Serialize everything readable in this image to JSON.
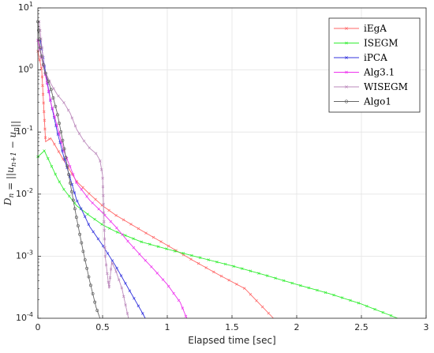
{
  "chart_data": {
    "type": "line",
    "xlabel": "Elapsed time [sec]",
    "ylabel": "D_n = ||u_{n+1} − u_n||",
    "xlim": [
      0,
      3
    ],
    "ylim": [
      0.0001,
      10
    ],
    "yscale": "log",
    "grid": true,
    "legend_position": "top-right",
    "x_ticks": [
      "0",
      "0.5",
      "1",
      "1.5",
      "2",
      "2.5",
      "3"
    ],
    "y_ticks": [
      {
        "base": "10",
        "exp": "1"
      },
      {
        "base": "10",
        "exp": "0"
      },
      {
        "base": "10",
        "exp": "-1"
      },
      {
        "base": "10",
        "exp": "-2"
      },
      {
        "base": "10",
        "exp": "-3"
      },
      {
        "base": "10",
        "exp": "-4"
      }
    ],
    "series": [
      {
        "name": "iEgA",
        "color": "#ff6666",
        "marker": "x",
        "points": [
          [
            0.0,
            2.0
          ],
          [
            0.03,
            1.0
          ],
          [
            0.06,
            0.07
          ],
          [
            0.1,
            0.08
          ],
          [
            0.2,
            0.035
          ],
          [
            0.3,
            0.016
          ],
          [
            0.4,
            0.01
          ],
          [
            0.5,
            0.0065
          ],
          [
            0.6,
            0.0046
          ],
          [
            0.8,
            0.0026
          ],
          [
            1.0,
            0.0015
          ],
          [
            1.2,
            0.00085
          ],
          [
            1.4,
            0.0005
          ],
          [
            1.6,
            0.0003
          ],
          [
            1.82,
            0.0001
          ]
        ]
      },
      {
        "name": "ISEGM",
        "color": "#33ee33",
        "marker": "x",
        "points": [
          [
            0.0,
            0.04
          ],
          [
            0.05,
            0.05
          ],
          [
            0.1,
            0.03
          ],
          [
            0.15,
            0.018
          ],
          [
            0.2,
            0.012
          ],
          [
            0.3,
            0.0065
          ],
          [
            0.4,
            0.0045
          ],
          [
            0.5,
            0.0032
          ],
          [
            0.6,
            0.0025
          ],
          [
            0.8,
            0.0017
          ],
          [
            1.0,
            0.0013
          ],
          [
            1.25,
            0.00095
          ],
          [
            1.5,
            0.0007
          ],
          [
            1.75,
            0.0005
          ],
          [
            2.0,
            0.00035
          ],
          [
            2.25,
            0.00025
          ],
          [
            2.5,
            0.00017
          ],
          [
            2.78,
            0.0001
          ]
        ]
      },
      {
        "name": "iPCA",
        "color": "#3333dd",
        "marker": "x",
        "points": [
          [
            0.02,
            3.0
          ],
          [
            0.05,
            1.2
          ],
          [
            0.1,
            0.3
          ],
          [
            0.15,
            0.1
          ],
          [
            0.2,
            0.04
          ],
          [
            0.25,
            0.018
          ],
          [
            0.3,
            0.008
          ],
          [
            0.35,
            0.005
          ],
          [
            0.4,
            0.003
          ],
          [
            0.5,
            0.0015
          ],
          [
            0.6,
            0.0007
          ],
          [
            0.7,
            0.0003
          ],
          [
            0.8,
            0.00013
          ],
          [
            0.83,
            0.0001
          ]
        ]
      },
      {
        "name": "Alg3.1",
        "color": "#ee33ee",
        "marker": "x",
        "points": [
          [
            0.0,
            3.0
          ],
          [
            0.05,
            1.0
          ],
          [
            0.1,
            0.3
          ],
          [
            0.2,
            0.05
          ],
          [
            0.3,
            0.015
          ],
          [
            0.4,
            0.008
          ],
          [
            0.5,
            0.005
          ],
          [
            0.6,
            0.003
          ],
          [
            0.7,
            0.0017
          ],
          [
            0.8,
            0.001
          ],
          [
            0.9,
            0.0006
          ],
          [
            1.0,
            0.00035
          ],
          [
            1.1,
            0.00018
          ],
          [
            1.15,
            0.0001
          ]
        ]
      },
      {
        "name": "WISEGM",
        "color": "#bb88bb",
        "marker": "x",
        "points": [
          [
            0.01,
            6.0
          ],
          [
            0.05,
            1.0
          ],
          [
            0.1,
            0.6
          ],
          [
            0.15,
            0.4
          ],
          [
            0.2,
            0.3
          ],
          [
            0.25,
            0.2
          ],
          [
            0.3,
            0.11
          ],
          [
            0.35,
            0.075
          ],
          [
            0.4,
            0.055
          ],
          [
            0.45,
            0.045
          ],
          [
            0.48,
            0.035
          ],
          [
            0.5,
            0.02
          ],
          [
            0.52,
            0.001
          ],
          [
            0.55,
            0.0003
          ],
          [
            0.57,
            0.0008
          ],
          [
            0.6,
            0.0006
          ],
          [
            0.65,
            0.0003
          ],
          [
            0.7,
            0.0001
          ]
        ]
      },
      {
        "name": "Algo1",
        "color": "#666666",
        "marker": "o",
        "points": [
          [
            0.0,
            6.0
          ],
          [
            0.02,
            2.0
          ],
          [
            0.05,
            1.0
          ],
          [
            0.1,
            0.5
          ],
          [
            0.15,
            0.2
          ],
          [
            0.2,
            0.06
          ],
          [
            0.25,
            0.015
          ],
          [
            0.3,
            0.004
          ],
          [
            0.35,
            0.0012
          ],
          [
            0.4,
            0.0004
          ],
          [
            0.45,
            0.00015
          ],
          [
            0.48,
            0.0001
          ]
        ]
      }
    ]
  }
}
